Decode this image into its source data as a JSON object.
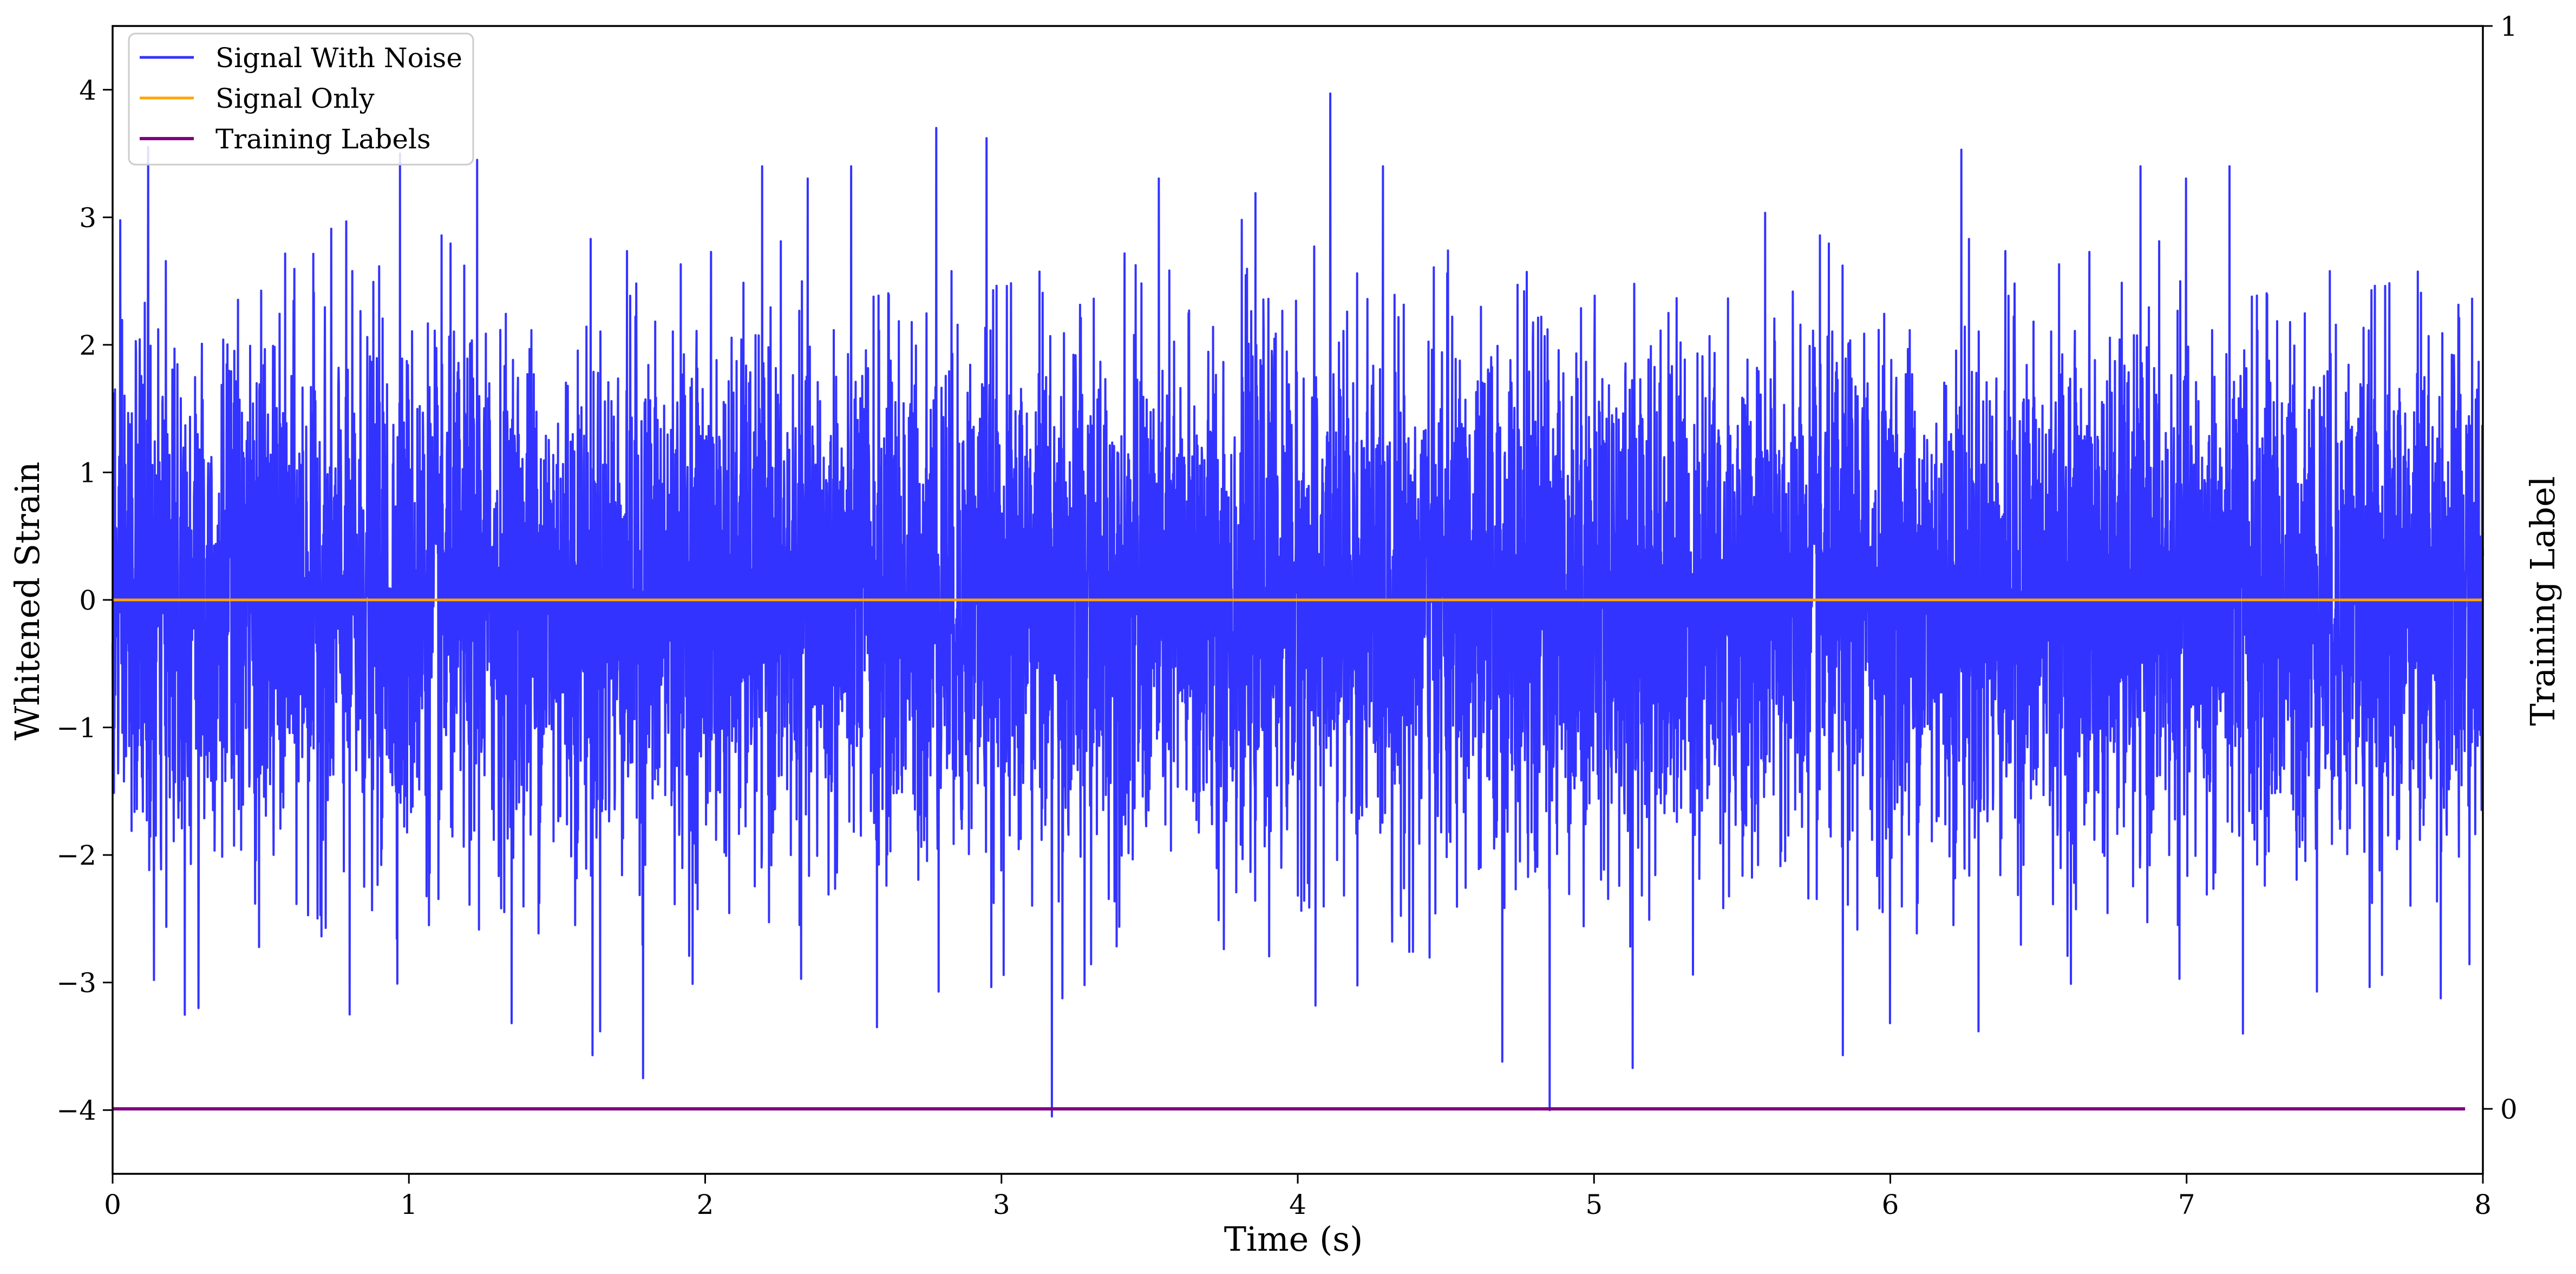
{
  "chart_data": {
    "type": "line",
    "title": "",
    "xlabel": "Time (s)",
    "ylabel": "Whitened Strain",
    "y2label": "Training Label",
    "xlim": [
      0,
      8
    ],
    "ylim": [
      -4.5,
      4.5
    ],
    "y2lim": [
      -0.06,
      1.0
    ],
    "xticks": [
      "0",
      "1",
      "2",
      "3",
      "4",
      "5",
      "6",
      "7",
      "8"
    ],
    "yticks": [
      "−4",
      "−3",
      "−2",
      "−1",
      "0",
      "1",
      "2",
      "3",
      "4"
    ],
    "y2ticks": [
      "0",
      "1"
    ],
    "grid": false,
    "legend_position": "upper left",
    "series": [
      {
        "name": "Signal With Noise",
        "color": "#3333ff",
        "axis": "left",
        "description_stats": {
          "mean": 0,
          "std": 1.0,
          "min": -4.05,
          "max": 3.97
        },
        "peaks": [
          {
            "x": 0.12,
            "y": 3.55
          },
          {
            "x": 0.97,
            "y": 3.5
          },
          {
            "x": 1.23,
            "y": 3.45
          },
          {
            "x": 2.78,
            "y": 3.7
          },
          {
            "x": 2.95,
            "y": 3.62
          },
          {
            "x": 4.11,
            "y": 3.97
          },
          {
            "x": 6.24,
            "y": 3.53
          },
          {
            "x": 3.17,
            "y": -4.05
          },
          {
            "x": 4.85,
            "y": -4.0
          },
          {
            "x": 1.79,
            "y": -3.75
          },
          {
            "x": 1.62,
            "y": -3.57
          },
          {
            "x": 4.69,
            "y": -3.62
          },
          {
            "x": 5.13,
            "y": -3.67
          },
          {
            "x": 5.84,
            "y": -3.57
          },
          {
            "x": 7.19,
            "y": -3.4
          },
          {
            "x": 0.29,
            "y": -3.2
          },
          {
            "x": 0.8,
            "y": -3.25
          },
          {
            "x": 0.14,
            "y": -2.98
          },
          {
            "x": 2.58,
            "y": -3.35
          },
          {
            "x": 3.28,
            "y": -3.02
          },
          {
            "x": 4.06,
            "y": -3.18
          }
        ]
      },
      {
        "name": "Signal Only",
        "color": "#ffa500",
        "axis": "left",
        "x": [
          0,
          8
        ],
        "y": [
          0,
          0
        ]
      },
      {
        "name": "Training Labels",
        "color": "#800080",
        "axis": "right",
        "x": [
          0,
          7.94
        ],
        "y": [
          0,
          0
        ]
      }
    ]
  }
}
